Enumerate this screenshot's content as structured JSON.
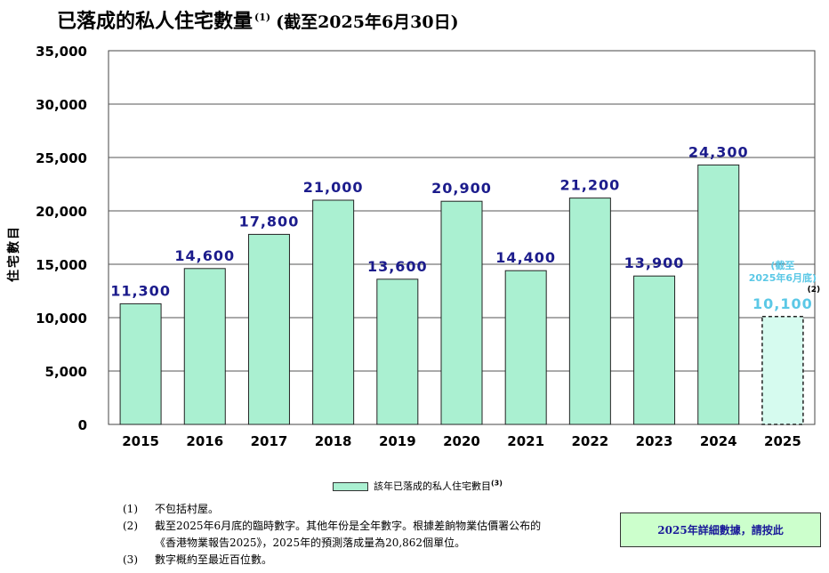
{
  "title": {
    "main": "已落成的私人住宅數量",
    "note_ref": "(1)",
    "subtitle": "(截至2025年6月30日)"
  },
  "chart_data": {
    "type": "bar",
    "ylabel": "住宅數目",
    "ylim": [
      0,
      35000
    ],
    "yticks": [
      0,
      5000,
      10000,
      15000,
      20000,
      25000,
      30000,
      35000
    ],
    "ytick_labels": [
      "0",
      "5,000",
      "10,000",
      "15,000",
      "20,000",
      "25,000",
      "30,000",
      "35,000"
    ],
    "grid": true,
    "categories": [
      "2015",
      "2016",
      "2017",
      "2018",
      "2019",
      "2020",
      "2021",
      "2022",
      "2023",
      "2024",
      "2025"
    ],
    "values": [
      11300,
      14600,
      17800,
      21000,
      13600,
      20900,
      14400,
      21200,
      13900,
      24300,
      10100
    ],
    "labels": [
      "11,300",
      "14,600",
      "17,800",
      "21,000",
      "13,600",
      "20,900",
      "14,400",
      "21,200",
      "13,900",
      "24,300",
      "10,100"
    ],
    "provisional_index": 10,
    "provisional_annotation": [
      "(截至",
      "2025年6月底)"
    ],
    "provisional_note_ref": "(2)",
    "bar_color": "#aaf0d1",
    "provisional_bar_color": "#d6fbef",
    "label_color": "#1c1c8c",
    "provisional_label_color": "#5bc8e6"
  },
  "legend": {
    "label": "該年已落成的私人住宅數目",
    "note_ref": "(3)",
    "placement": "bottom-center"
  },
  "notes": [
    {
      "num": "(1)",
      "lines": [
        "不包括村屋。"
      ]
    },
    {
      "num": "(2)",
      "lines": [
        "截至2025年6月底的臨時數字。其他年份是全年數字。根據差餉物業估價署公布的",
        "《香港物業報告2025》，2025年的預測落成量為20,862個單位。"
      ]
    },
    {
      "num": "(3)",
      "lines": [
        "數字概約至最近百位數。"
      ]
    }
  ],
  "details_button": {
    "label": "2025年詳細數據，請按此"
  }
}
